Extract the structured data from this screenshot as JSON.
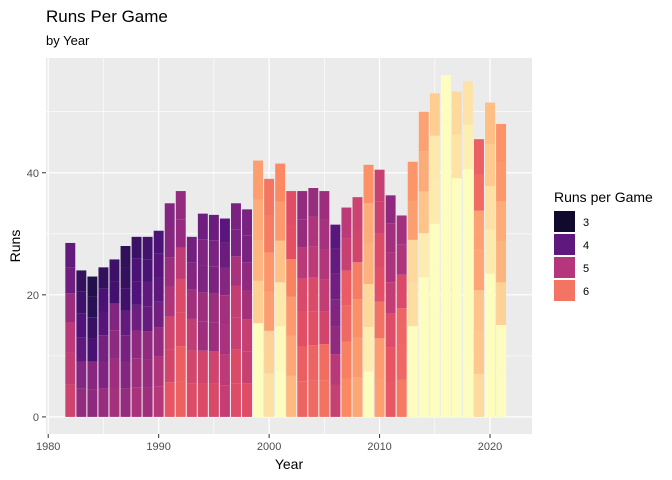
{
  "chart_data": {
    "type": "bar",
    "stacked": true,
    "title": "Runs Per Game",
    "subtitle": "by Year",
    "xlabel": "Year",
    "ylabel": "Runs",
    "x_ticks": [
      1980,
      1990,
      2000,
      2010,
      2020
    ],
    "y_ticks": [
      0,
      20,
      40
    ],
    "xlim": [
      1979.8,
      2023.8
    ],
    "ylim": [
      -2.8,
      58.8
    ],
    "legend": {
      "title": "Runs per Game",
      "position": "right",
      "entries": [
        "3",
        "4",
        "5",
        "6"
      ]
    },
    "color_scale": "magma (continuous, dark = 3 runs, light = 7 runs)",
    "x": [
      1982,
      1983,
      1984,
      1985,
      1986,
      1987,
      1988,
      1989,
      1990,
      1991,
      1992,
      1993,
      1994,
      1995,
      1996,
      1997,
      1998,
      1999,
      2000,
      2001,
      2002,
      2003,
      2004,
      2005,
      2006,
      2007,
      2008,
      2009,
      2010,
      2011,
      2012,
      2013,
      2014,
      2015,
      2016,
      2017,
      2018,
      2019,
      2020,
      2021
    ],
    "totals": [
      28.5,
      24.0,
      23.0,
      24.5,
      25.8,
      28.0,
      29.5,
      29.5,
      30.5,
      35.0,
      37.0,
      29.5,
      33.3,
      33.1,
      32.5,
      35.0,
      34.0,
      42.0,
      39.0,
      41.5,
      37.0,
      37.0,
      37.5,
      37.0,
      31.5,
      34.3,
      36.0,
      41.3,
      40.5,
      36.3,
      33.0,
      41.8,
      50.0,
      53.0,
      56.0,
      53.3,
      55.0,
      45.5,
      51.5,
      48.0
    ],
    "games_per_year": [
      6,
      6,
      6,
      6,
      6,
      7,
      7,
      7,
      7,
      7,
      7,
      6,
      7,
      7,
      7,
      7,
      7,
      6,
      6,
      6,
      6,
      7,
      7,
      7,
      7,
      6,
      6,
      6,
      7,
      7,
      6,
      6,
      7,
      7,
      7,
      7,
      7,
      7,
      7,
      7
    ],
    "background": "#ebebeb",
    "gridlines": true
  }
}
